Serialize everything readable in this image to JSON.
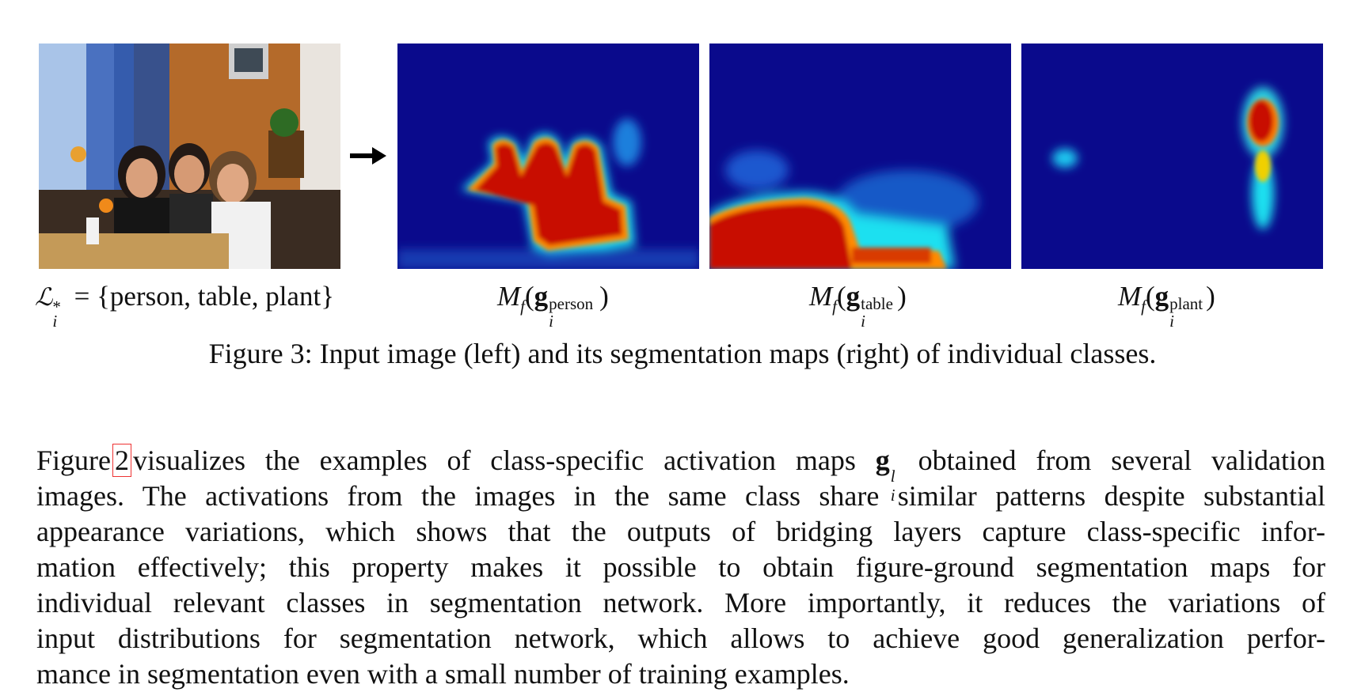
{
  "figure": {
    "input_label": {
      "symbol": "ℒ",
      "sub": "i",
      "sup": "*",
      "equals": "=",
      "set": "{person, table, plant}"
    },
    "maps": [
      {
        "func": "M",
        "func_sub": "f",
        "vec": "g",
        "vec_sub": "i",
        "class": "person"
      },
      {
        "func": "M",
        "func_sub": "f",
        "vec": "g",
        "vec_sub": "i",
        "class": "table"
      },
      {
        "func": "M",
        "func_sub": "f",
        "vec": "g",
        "vec_sub": "i",
        "class": "plant"
      }
    ],
    "caption": "Figure 3: Input image (left) and its segmentation maps (right) of individual classes.",
    "colors": {
      "heat_low": "#0a0a8c",
      "heat_mid": "#23d8f0",
      "heat_high": "#d01000",
      "arrow": "#000000"
    }
  },
  "body": {
    "lines": [
      {
        "pre": "Figure",
        "ref": "2",
        "post": "visualizes the examples of class-specific activation maps",
        "math_vec": "g",
        "math_sub": "i",
        "math_sup": "l",
        "tail": "obtained from several validation"
      },
      {
        "text": "images.  The activations from the images in the same class share similar patterns despite substantial"
      },
      {
        "text": "appearance variations, which shows that the outputs of bridging layers capture class-specific infor-"
      },
      {
        "text": "mation effectively; this property makes it possible to obtain figure-ground segmentation maps for"
      },
      {
        "text": "individual relevant classes in segmentation network. More importantly, it reduces the variations of"
      },
      {
        "text": "input distributions for segmentation network, which allows to achieve good generalization perfor-"
      },
      {
        "text": "mance in segmentation even with a small number of training examples."
      }
    ]
  }
}
